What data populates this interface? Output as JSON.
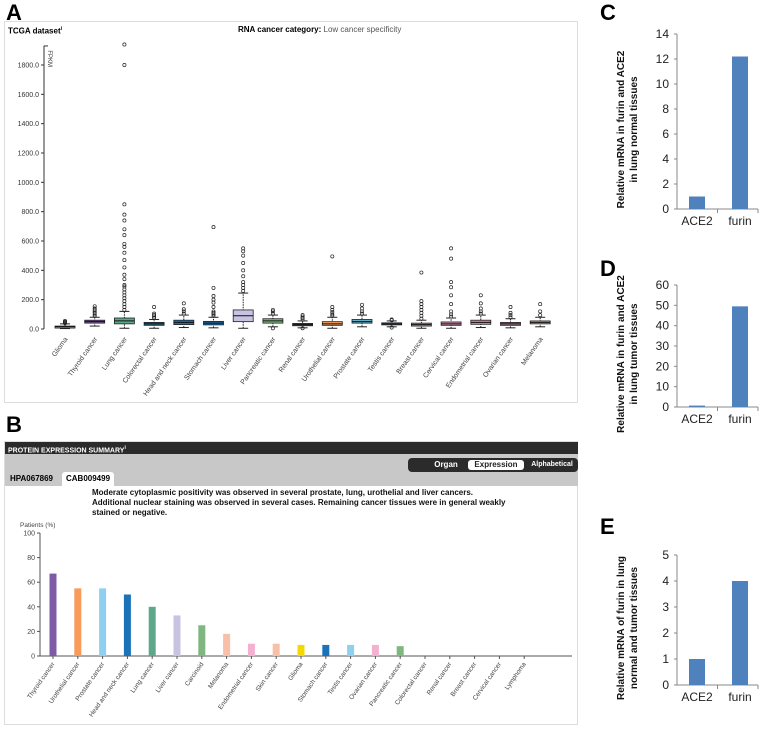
{
  "panels": {
    "a": "A",
    "b": "B",
    "c": "C",
    "d": "D",
    "e": "E"
  },
  "chart_data": [
    {
      "type": "box",
      "panel": "A",
      "title_bold": "RNA cancer category:",
      "title_rest": "Low cancer specificity",
      "dataset_label": "TCGA dataset",
      "ylabel": "FPKM",
      "ylim": [
        0,
        1950
      ],
      "yticks": [
        "0.0",
        "200.0",
        "400.0",
        "600.0",
        "800.0",
        "1000.0",
        "1200.0",
        "1400.0",
        "1600.0",
        "1800.0"
      ],
      "categories": [
        {
          "name": "Glioma",
          "color": "#e8c840",
          "q1": 10,
          "median": 15,
          "q3": 20,
          "lo": 3,
          "hi": 35,
          "outliers": [
            40,
            45,
            50,
            55
          ]
        },
        {
          "name": "Thyroid cancer",
          "color": "#7d5ba6",
          "q1": 40,
          "median": 50,
          "q3": 60,
          "lo": 20,
          "hi": 80,
          "outliers": [
            90,
            100,
            110,
            120,
            130,
            140,
            155
          ]
        },
        {
          "name": "Lung cancer",
          "color": "#5da88a",
          "q1": 35,
          "median": 55,
          "q3": 75,
          "lo": 5,
          "hi": 120,
          "outliers": [
            130,
            150,
            170,
            190,
            210,
            230,
            250,
            270,
            290,
            300,
            340,
            370,
            420,
            470,
            520,
            560,
            580,
            640,
            680,
            740,
            780,
            850,
            1800,
            1940
          ]
        },
        {
          "name": "Colorectal cancer",
          "color": "#2a6f8a",
          "q1": 25,
          "median": 35,
          "q3": 45,
          "lo": 5,
          "hi": 65,
          "outliers": [
            75,
            85,
            95,
            105,
            150
          ]
        },
        {
          "name": "Head and neck cancer",
          "color": "#1a73b8",
          "q1": 30,
          "median": 45,
          "q3": 60,
          "lo": 10,
          "hi": 95,
          "outliers": [
            105,
            120,
            135,
            175
          ]
        },
        {
          "name": "Stomach cancer",
          "color": "#1a73b8",
          "q1": 28,
          "median": 40,
          "q3": 52,
          "lo": 8,
          "hi": 80,
          "outliers": [
            90,
            100,
            110,
            120,
            150,
            180,
            200,
            225,
            280,
            695
          ]
        },
        {
          "name": "Liver cancer",
          "color": "#c9c3e3",
          "q1": 50,
          "median": 90,
          "q3": 130,
          "lo": 5,
          "hi": 245,
          "outliers": [
            260,
            280,
            300,
            320,
            360,
            400,
            450,
            500,
            530,
            550
          ]
        },
        {
          "name": "Pancreatic cancer",
          "color": "#80b780",
          "q1": 40,
          "median": 55,
          "q3": 70,
          "lo": 15,
          "hi": 95,
          "outliers": [
            5,
            105,
            120,
            130
          ]
        },
        {
          "name": "Renal cancer",
          "color": "#3a5f6f",
          "q1": 22,
          "median": 30,
          "q3": 38,
          "lo": 8,
          "hi": 55,
          "outliers": [
            5,
            65,
            75,
            85,
            95
          ]
        },
        {
          "name": "Urothelial cancer",
          "color": "#f79a5a",
          "q1": 25,
          "median": 35,
          "q3": 50,
          "lo": 5,
          "hi": 80,
          "outliers": [
            90,
            100,
            115,
            130,
            150,
            495
          ]
        },
        {
          "name": "Prostate cancer",
          "color": "#5fb0c8",
          "q1": 40,
          "median": 50,
          "q3": 65,
          "lo": 15,
          "hi": 95,
          "outliers": [
            105,
            120,
            140,
            165
          ]
        },
        {
          "name": "Testis cancer",
          "color": "#4a7fa0",
          "q1": 28,
          "median": 35,
          "q3": 42,
          "lo": 15,
          "hi": 55,
          "outliers": [
            10,
            60,
            65
          ]
        },
        {
          "name": "Breast cancer",
          "color": "#d08aa8",
          "q1": 20,
          "median": 30,
          "q3": 40,
          "lo": 5,
          "hi": 60,
          "outliers": [
            70,
            90,
            110,
            130,
            150,
            170,
            190,
            385
          ]
        },
        {
          "name": "Cervical cancer",
          "color": "#d08aa8",
          "q1": 25,
          "median": 35,
          "q3": 48,
          "lo": 5,
          "hi": 75,
          "outliers": [
            85,
            100,
            120,
            170,
            230,
            285,
            320,
            480,
            550
          ]
        },
        {
          "name": "Endometrial cancer",
          "color": "#d08aa8",
          "q1": 32,
          "median": 45,
          "q3": 60,
          "lo": 10,
          "hi": 95,
          "outliers": [
            105,
            120,
            140,
            175,
            230
          ]
        },
        {
          "name": "Ovarian cancer",
          "color": "#b07a98",
          "q1": 25,
          "median": 35,
          "q3": 45,
          "lo": 8,
          "hi": 70,
          "outliers": [
            80,
            95,
            110,
            150
          ]
        },
        {
          "name": "Melanoma",
          "color": "#e8a078",
          "q1": 35,
          "median": 45,
          "q3": 55,
          "lo": 15,
          "hi": 80,
          "outliers": [
            95,
            120,
            170
          ]
        }
      ]
    },
    {
      "type": "bar",
      "panel": "B",
      "header": "PROTEIN EXPRESSION SUMMARY",
      "tabs": [
        "HPA067869",
        "CAB009499"
      ],
      "active_tab": "CAB009499",
      "sort_buttons": [
        "Organ",
        "Expression",
        "Alphabetical"
      ],
      "active_sort": "Expression",
      "description": "Moderate cytoplasmic positivity was observed in several prostate, lung, urothelial and liver cancers. Additional nuclear staining was observed in several cases. Remaining cancer tissues were in general weakly stained or negative.",
      "ylabel": "Patients (%)",
      "ylim": [
        0,
        100
      ],
      "yticks": [
        "0",
        "20",
        "40",
        "60",
        "80",
        "100"
      ],
      "categories": [
        "Thyroid cancer",
        "Urothelial cancer",
        "Prostate cancer",
        "Head and neck cancer",
        "Lung cancer",
        "Liver cancer",
        "Carcinoid",
        "Melanoma",
        "Endometrial cancer",
        "Skin cancer",
        "Glioma",
        "Stomach cancer",
        "Testis cancer",
        "Ovarian cancer",
        "Pancreatic cancer",
        "Colorectal cancer",
        "Renal cancer",
        "Breast cancer",
        "Cervical cancer",
        "Lymphoma"
      ],
      "values": [
        67,
        55,
        55,
        50,
        40,
        33,
        25,
        18,
        10,
        10,
        9,
        9,
        9,
        9,
        8,
        0,
        0,
        0,
        0,
        0
      ],
      "colors": [
        "#7d5ba6",
        "#f79a5a",
        "#8fd0f0",
        "#1a73b8",
        "#5da88a",
        "#c9c3e3",
        "#80b780",
        "#f8c0a8",
        "#f4b0d0",
        "#f8c0a8",
        "#f5d800",
        "#1a73b8",
        "#8fd0f0",
        "#f4b0d0",
        "#80b780",
        "#f4b0d0",
        "#f4b0d0",
        "#f4b0d0",
        "#f4b0d0",
        "#c0c0c0"
      ]
    },
    {
      "type": "bar",
      "panel": "C",
      "ylabel": "Relative mRNA in furin and ACE2 in lung normal tissues",
      "categories": [
        "ACE2",
        "furin"
      ],
      "values": [
        1,
        12.2
      ],
      "ylim": [
        0,
        14
      ],
      "yticks": [
        "0",
        "2",
        "4",
        "6",
        "8",
        "10",
        "12",
        "14"
      ],
      "color": "#4f81bd"
    },
    {
      "type": "bar",
      "panel": "D",
      "ylabel": "Relative mRNA in furin and ACE2 in lung tumor tissues",
      "categories": [
        "ACE2",
        "furin"
      ],
      "values": [
        0.7,
        49.5
      ],
      "ylim": [
        0,
        60
      ],
      "yticks": [
        "0",
        "10",
        "20",
        "30",
        "40",
        "50",
        "60"
      ],
      "color": "#4f81bd"
    },
    {
      "type": "bar",
      "panel": "E",
      "ylabel": "Relative mRNA of furin in lung normal and tumor tissues",
      "categories": [
        "ACE2",
        "furin"
      ],
      "values": [
        1,
        4
      ],
      "ylim": [
        0,
        5
      ],
      "yticks": [
        "0",
        "1",
        "2",
        "3",
        "4",
        "5"
      ],
      "color": "#4f81bd"
    }
  ]
}
